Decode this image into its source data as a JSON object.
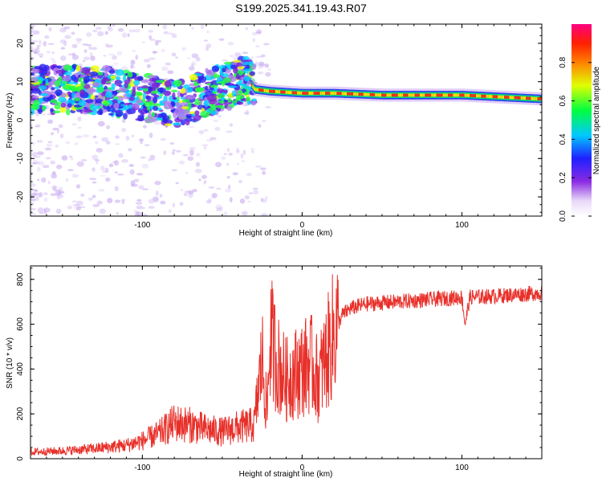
{
  "title": "S199.2025.341.19.43.R07",
  "colors": {
    "line": "#e8302a",
    "frame": "#000000"
  },
  "chart_data": [
    {
      "type": "heatmap",
      "xlabel": "Height of straight line (km)",
      "ylabel": "Frequency (Hz)",
      "xlim": [
        -170,
        150
      ],
      "ylim": [
        -25,
        25
      ],
      "xticks": [
        -100,
        0,
        100
      ],
      "xtick_labels": [
        "-100",
        "0",
        "100"
      ],
      "yticks": [
        -20,
        -10,
        0,
        10,
        20
      ],
      "ytick_labels": [
        "-20",
        "-10",
        "0",
        "10",
        "20"
      ],
      "colorbar": {
        "label": "Normalized spectral amplitude",
        "range": [
          0,
          1
        ],
        "ticks": [
          0.0,
          0.2,
          0.4,
          0.6,
          0.8
        ],
        "tick_labels": [
          "0.0",
          "0.2",
          "0.4",
          "0.6",
          "0.8"
        ]
      },
      "ridge": {
        "x": [
          -170,
          -140,
          -120,
          -100,
          -80,
          -60,
          -45,
          -35,
          -30,
          -20,
          0,
          20,
          50,
          100,
          150
        ],
        "y": [
          8,
          8,
          7.5,
          6,
          4,
          7,
          9,
          11,
          8,
          7.5,
          7,
          7,
          6.5,
          6.5,
          5.5
        ]
      }
    },
    {
      "type": "line",
      "xlabel": "Height of straight line (km)",
      "ylabel": "SNR (10 * v/v)",
      "xlim": [
        -170,
        150
      ],
      "ylim": [
        0,
        860
      ],
      "xticks": [
        -100,
        0,
        100
      ],
      "xtick_labels": [
        "-100",
        "0",
        "100"
      ],
      "yticks": [
        0,
        200,
        400,
        600,
        800
      ],
      "ytick_labels": [
        "0",
        "200",
        "400",
        "600",
        "800"
      ],
      "series": [
        {
          "name": "SNR",
          "x": [
            -170,
            -150,
            -130,
            -110,
            -100,
            -90,
            -80,
            -70,
            -60,
            -50,
            -40,
            -30,
            -25,
            -22,
            -20,
            -15,
            -10,
            -5,
            0,
            5,
            10,
            15,
            20,
            25,
            30,
            40,
            60,
            80,
            100,
            102,
            105,
            120,
            150
          ],
          "values": [
            30,
            35,
            45,
            60,
            80,
            110,
            160,
            150,
            130,
            120,
            140,
            150,
            450,
            200,
            550,
            420,
            350,
            380,
            400,
            430,
            350,
            450,
            560,
            640,
            670,
            690,
            700,
            710,
            720,
            600,
            720,
            725,
            740
          ]
        }
      ]
    }
  ]
}
